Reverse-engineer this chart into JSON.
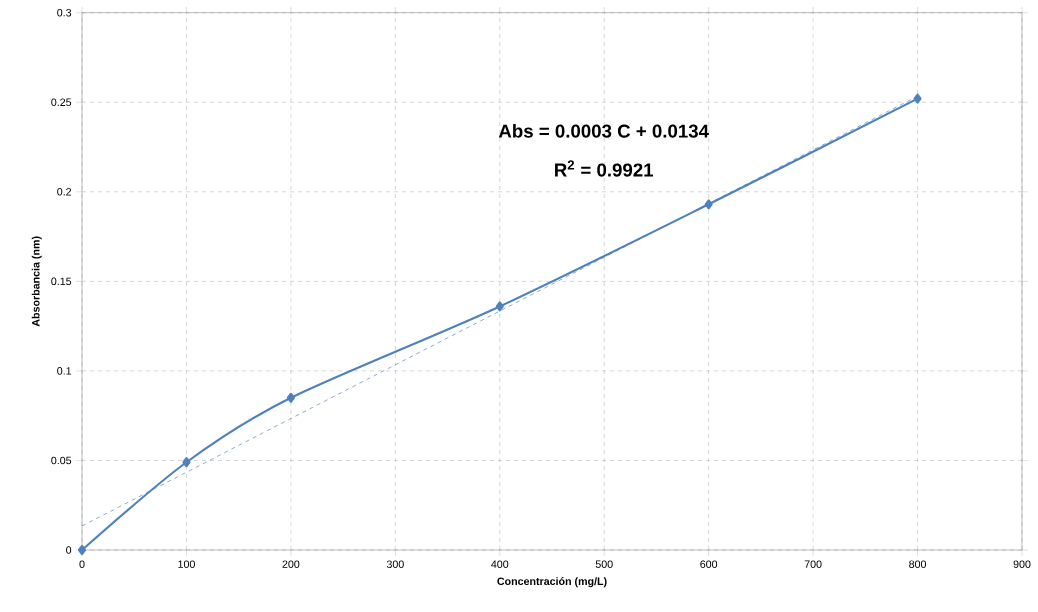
{
  "chart_data": {
    "type": "line",
    "xlabel": "Concentración (mg/L)",
    "ylabel": "Absorbancia (nm)",
    "annotations": [
      "Abs = 0.0003 C + 0.0134",
      "R$^{2}$ = 0.9921"
    ],
    "series": [
      {
        "color": "#4f81bd",
        "x": [
          0,
          100,
          200,
          400,
          600,
          800
        ],
        "values": [
          0,
          0.049,
          0.085,
          0.136,
          0.193,
          0.252
        ],
        "marker": "diamond",
        "line_style": "solid"
      },
      {
        "color": "#4f81bd",
        "x": [
          0,
          800
        ],
        "values": [
          0.0134,
          0.2534
        ],
        "marker": "none",
        "line_style": "dashed"
      }
    ],
    "xlim": [
      0,
      900
    ],
    "xticks": [
      0,
      100,
      200,
      300,
      400,
      500,
      600,
      700,
      800,
      900
    ],
    "ylim": [
      0,
      0.3
    ],
    "yticks": [
      0,
      0.05,
      0.1,
      0.15,
      0.2,
      0.25,
      0.3
    ],
    "grid": true
  }
}
